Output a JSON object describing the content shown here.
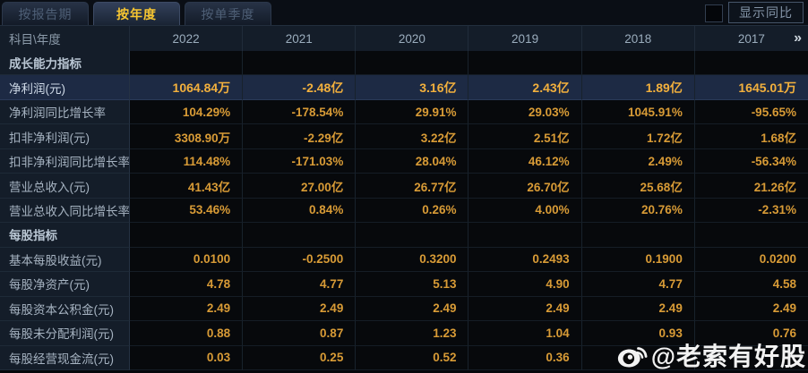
{
  "tabs": [
    {
      "label": "按报告期",
      "active": false
    },
    {
      "label": "按年度",
      "active": true
    },
    {
      "label": "按单季度",
      "active": false
    }
  ],
  "controls": {
    "show_yoy_label": "显示同比",
    "checkbox_checked": false
  },
  "table": {
    "corner_label": "科目\\年度",
    "years": [
      "2022",
      "2021",
      "2020",
      "2019",
      "2018",
      "2017"
    ],
    "more_label": "»",
    "rows": [
      {
        "type": "section",
        "label": "成长能力指标",
        "values": [
          "",
          "",
          "",
          "",
          "",
          ""
        ]
      },
      {
        "type": "data",
        "highlight": true,
        "label": "净利润(元)",
        "values": [
          "1064.84万",
          "-2.48亿",
          "3.16亿",
          "2.43亿",
          "1.89亿",
          "1645.01万"
        ]
      },
      {
        "type": "data",
        "label": "净利润同比增长率",
        "values": [
          "104.29%",
          "-178.54%",
          "29.91%",
          "29.03%",
          "1045.91%",
          "-95.65%"
        ]
      },
      {
        "type": "data",
        "label": "扣非净利润(元)",
        "values": [
          "3308.90万",
          "-2.29亿",
          "3.22亿",
          "2.51亿",
          "1.72亿",
          "1.68亿"
        ]
      },
      {
        "type": "data",
        "label": "扣非净利润同比增长率",
        "values": [
          "114.48%",
          "-171.03%",
          "28.04%",
          "46.12%",
          "2.49%",
          "-56.34%"
        ]
      },
      {
        "type": "data",
        "label": "营业总收入(元)",
        "values": [
          "41.43亿",
          "27.00亿",
          "26.77亿",
          "26.70亿",
          "25.68亿",
          "21.26亿"
        ]
      },
      {
        "type": "data",
        "label": "营业总收入同比增长率",
        "values": [
          "53.46%",
          "0.84%",
          "0.26%",
          "4.00%",
          "20.76%",
          "-2.31%"
        ]
      },
      {
        "type": "section",
        "label": "每股指标",
        "values": [
          "",
          "",
          "",
          "",
          "",
          ""
        ]
      },
      {
        "type": "data",
        "label": "基本每股收益(元)",
        "values": [
          "0.0100",
          "-0.2500",
          "0.3200",
          "0.2493",
          "0.1900",
          "0.0200"
        ]
      },
      {
        "type": "data",
        "label": "每股净资产(元)",
        "values": [
          "4.78",
          "4.77",
          "5.13",
          "4.90",
          "4.77",
          "4.58"
        ]
      },
      {
        "type": "data",
        "label": "每股资本公积金(元)",
        "values": [
          "2.49",
          "2.49",
          "2.49",
          "2.49",
          "2.49",
          "2.49"
        ]
      },
      {
        "type": "data",
        "label": "每股未分配利润(元)",
        "values": [
          "0.88",
          "0.87",
          "1.23",
          "1.04",
          "0.93",
          "0.76"
        ]
      },
      {
        "type": "data",
        "label": "每股经营现金流(元)",
        "values": [
          "0.03",
          "0.25",
          "0.52",
          "0.36",
          "",
          ""
        ]
      }
    ]
  },
  "watermark": {
    "icon": "weibo-icon",
    "text": "@老索有好股"
  },
  "colors": {
    "value_gold": "#d89b36",
    "highlight_row_bg": "#1d2a44",
    "highlight_value_gold": "#f2b03d",
    "active_tab_yellow": "#f7c631",
    "label_bg": "#141d29",
    "cell_bg": "#07090c",
    "label_text": "#a6b3c1"
  }
}
